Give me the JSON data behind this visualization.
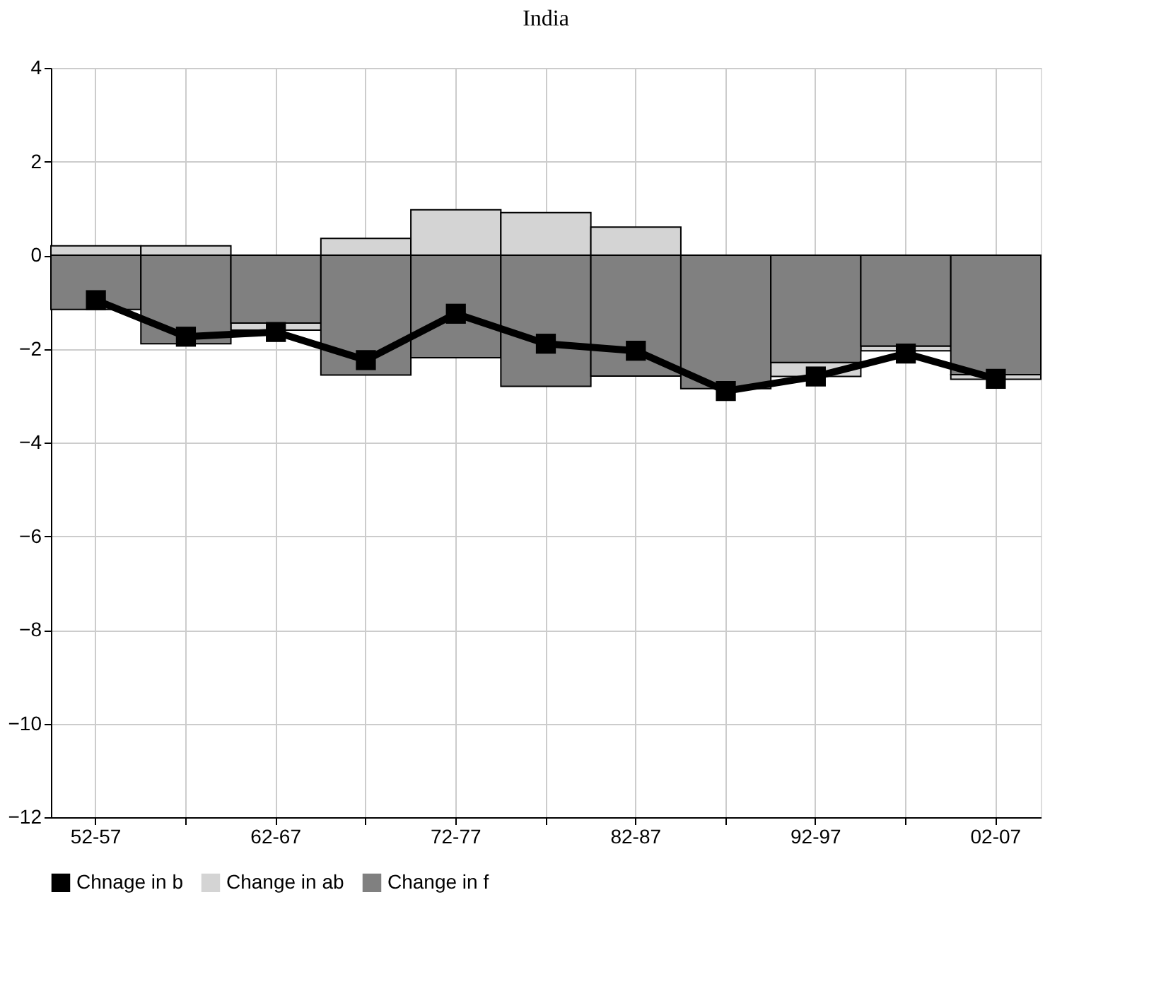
{
  "chart_data": {
    "type": "bar",
    "title": "India",
    "stacked": true,
    "categories": [
      "52-57",
      null,
      "62-67",
      null,
      "72-77",
      null,
      "82-87",
      null,
      "92-97",
      null,
      "02-07"
    ],
    "series": [
      {
        "name": "Chnage in b",
        "type": "line",
        "color": "#000000",
        "marker": "square",
        "values": [
          -0.96,
          -1.74,
          -1.64,
          -2.24,
          -1.25,
          -1.89,
          -2.04,
          -2.9,
          -2.59,
          -2.1,
          -2.64
        ]
      },
      {
        "name": "Change in ab",
        "color": "#d4d4d4",
        "values": [
          0.2,
          0.2,
          -0.15,
          0.36,
          0.97,
          0.91,
          0.6,
          null,
          -0.3,
          -0.1,
          -0.1
        ]
      },
      {
        "name": "Change in f",
        "color": "#808080",
        "values": [
          -1.16,
          -1.89,
          -1.45,
          -2.56,
          -2.19,
          -2.8,
          -2.58,
          -2.85,
          -2.29,
          -1.94,
          -2.55
        ]
      }
    ],
    "ylim": [
      -12,
      4
    ],
    "yticks": [
      -12,
      -10,
      -8,
      -6,
      -4,
      -2,
      0,
      2,
      4
    ],
    "grid": true,
    "legend": "bottom",
    "line_style": "solid"
  }
}
